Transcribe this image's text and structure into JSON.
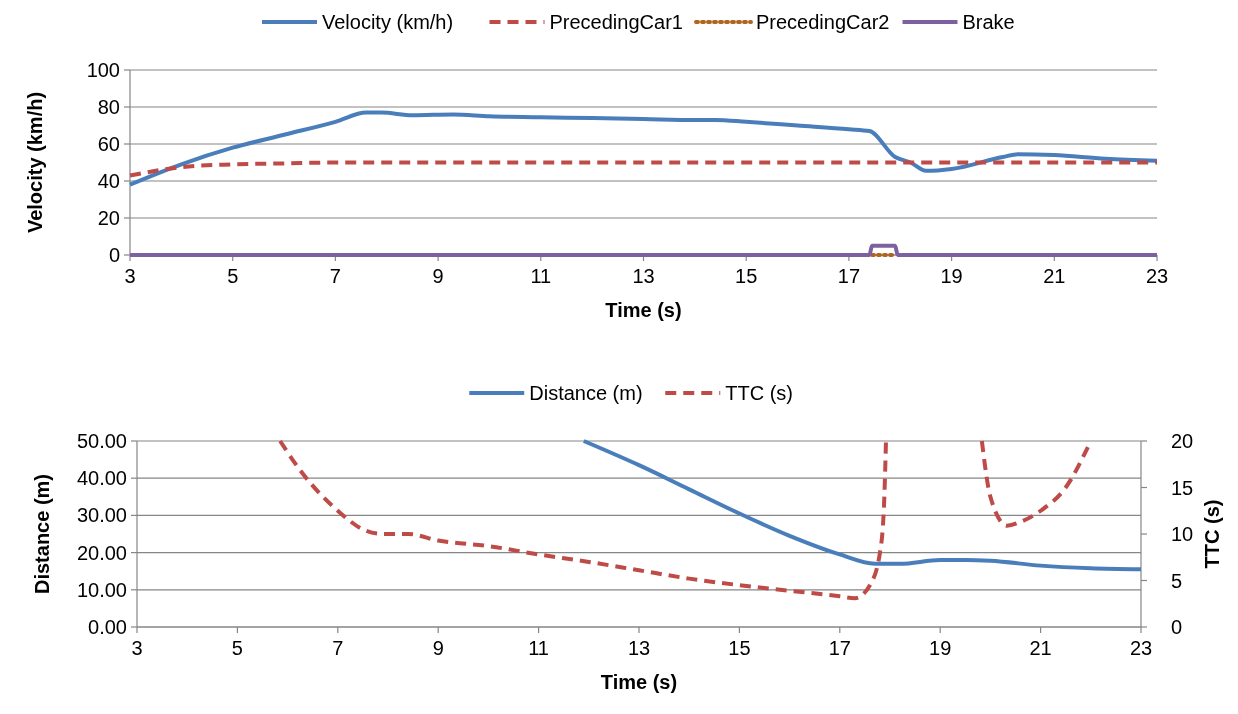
{
  "chart_data": [
    {
      "type": "line",
      "xlabel": "Time (s)",
      "ylabel": "Velocity (km/h)",
      "xlim": [
        3,
        23
      ],
      "xticks": [
        3,
        5,
        7,
        9,
        11,
        13,
        15,
        17,
        19,
        21,
        23
      ],
      "ylim": [
        0,
        100
      ],
      "yticks": [
        0,
        20,
        40,
        60,
        80,
        100
      ],
      "grid": "y",
      "legend": "top",
      "series": [
        {
          "name": "Velocity (km/h)",
          "color": "#4a7ebb",
          "line_style": "solid",
          "x": [
            3,
            4,
            5,
            6,
            7,
            7.6,
            7.9,
            8.5,
            9.3,
            10,
            11,
            12,
            13,
            14,
            14.4,
            15,
            16,
            17,
            17.4,
            17.9,
            18.2,
            18.5,
            19,
            20,
            20.3,
            21,
            22,
            23
          ],
          "values": [
            38,
            49,
            58,
            65,
            72,
            77,
            77,
            75.5,
            76,
            75,
            74.5,
            74,
            73.5,
            73,
            73,
            72,
            70,
            68,
            67,
            53,
            50,
            45.5,
            46.5,
            53,
            54.5,
            54,
            52,
            51
          ]
        },
        {
          "name": "PrecedingCar1",
          "color": "#be4b48",
          "line_style": "dashed",
          "x": [
            3,
            4,
            5,
            6,
            7,
            23
          ],
          "values": [
            43,
            47.5,
            49,
            49.5,
            50,
            50
          ]
        },
        {
          "name": "PrecedingCar2",
          "color": "#b0651e",
          "line_style": "dotted",
          "x": [
            17.45,
            17.9
          ],
          "values": [
            0,
            0
          ]
        },
        {
          "name": "Brake",
          "color": "#7d60a0",
          "line_style": "solid",
          "x": [
            3,
            17.4,
            17.45,
            17.9,
            17.95,
            23
          ],
          "values": [
            0,
            0,
            5,
            5,
            0,
            0
          ]
        }
      ]
    },
    {
      "type": "line",
      "xlabel": "Time (s)",
      "ylabel": "Distance (m)",
      "y2label": "TTC (s)",
      "xlim": [
        3,
        23
      ],
      "xticks": [
        3,
        5,
        7,
        9,
        11,
        13,
        15,
        17,
        19,
        21,
        23
      ],
      "ylim": [
        0,
        50
      ],
      "yticks": [
        {
          "value": 0,
          "label": "0.00"
        },
        {
          "value": 10,
          "label": "10.00"
        },
        {
          "value": 20,
          "label": "20.00"
        },
        {
          "value": 30,
          "label": "30.00"
        },
        {
          "value": 40,
          "label": "40.00"
        },
        {
          "value": 50,
          "label": "50.00"
        }
      ],
      "y2lim": [
        0,
        20
      ],
      "y2ticks": [
        0,
        5,
        10,
        15,
        20
      ],
      "grid": "y",
      "legend": "top",
      "series": [
        {
          "name": "Distance (m)",
          "color": "#4a7ebb",
          "line_style": "solid",
          "x": [
            11.9,
            13,
            14,
            15,
            16,
            17,
            17.7,
            18.2,
            19,
            19.5,
            20,
            21,
            22,
            23
          ],
          "values": [
            50,
            43.5,
            37,
            30.5,
            24.5,
            19.5,
            17,
            17,
            18,
            18,
            17.8,
            16.5,
            15.8,
            15.5
          ]
        },
        {
          "name": "TTC (s)",
          "color": "#be4b48",
          "line_style": "dashed",
          "axis": "y2",
          "x": [
            5.85,
            6.3,
            7,
            7.5,
            7.9,
            8.4,
            9,
            10,
            11,
            12,
            13,
            14,
            15,
            16,
            17,
            17.3,
            17.6,
            17.8,
            17.88,
            17.92,
            18.5,
            19.83,
            20,
            20.33,
            20.6,
            21,
            21.5,
            22
          ],
          "values": [
            20,
            16.5,
            12.5,
            10.5,
            10,
            10,
            9.3,
            8.7,
            7.8,
            7,
            6.1,
            5.2,
            4.5,
            3.9,
            3.3,
            3.1,
            4.5,
            8,
            13,
            20,
            null,
            20,
            14,
            10.9,
            11.3,
            12.5,
            15,
            20
          ]
        }
      ]
    }
  ]
}
